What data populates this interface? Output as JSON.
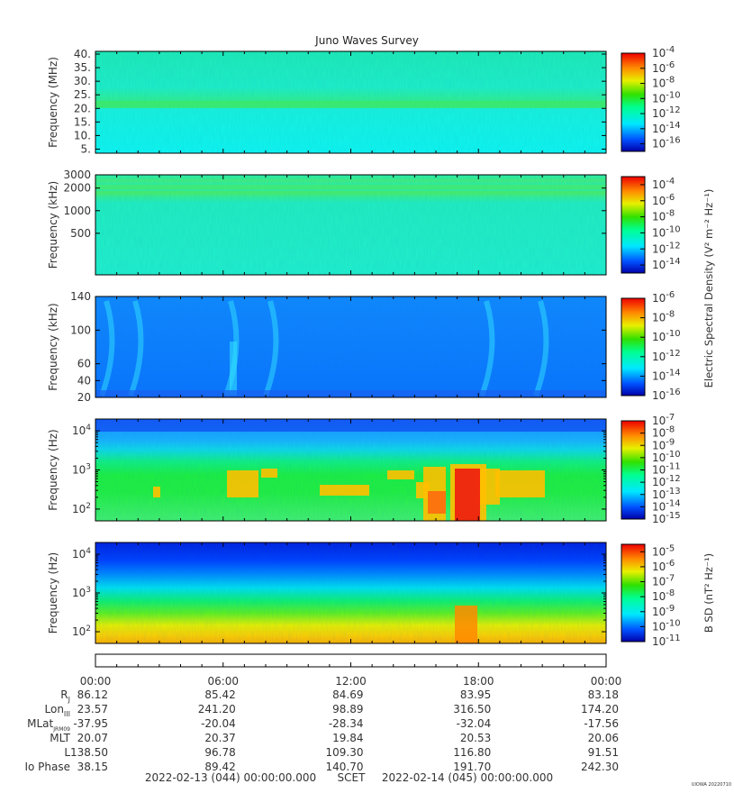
{
  "chart_data": {
    "type": "heatmap",
    "title": "Juno Waves Survey",
    "x_axis": {
      "tick_labels": [
        "00:00",
        "06:00",
        "12:00",
        "18:00",
        "00:00"
      ],
      "start": "2022-02-13 (044) 00:00:00.000",
      "end": "2022-02-14 (045) 00:00:00.000",
      "label": "SCET"
    },
    "ephemeris": [
      {
        "name": "R",
        "sub": "J",
        "values": [
          "86.12",
          "85.42",
          "84.69",
          "83.95",
          "83.18"
        ]
      },
      {
        "name": "Lon",
        "sub": "III",
        "values": [
          "23.57",
          "241.20",
          "98.89",
          "316.50",
          "174.20"
        ]
      },
      {
        "name": "MLat",
        "sub": "JRM09",
        "values": [
          "-37.95",
          "-20.04",
          "-28.34",
          "-32.04",
          "-17.56"
        ]
      },
      {
        "name": "MLT",
        "sub": "",
        "values": [
          "20.07",
          "20.37",
          "19.84",
          "20.53",
          "20.06"
        ]
      },
      {
        "name": "L",
        "sub": "",
        "values": [
          "138.50",
          "96.78",
          "109.30",
          "116.80",
          "91.51"
        ]
      },
      {
        "name": "Io Phase",
        "sub": "",
        "values": [
          "38.15",
          "89.42",
          "140.70",
          "191.70",
          "242.30"
        ]
      }
    ],
    "panels": [
      {
        "ylabel": "Frequency (MHz)",
        "scale": "linear",
        "ylim": [
          3.5,
          41
        ],
        "yticks": [
          "40.",
          "35.",
          "30.",
          "25.",
          "20.",
          "15.",
          "10.",
          "5."
        ],
        "colorbar_exponents": [
          "-4",
          "-6",
          "-8",
          "-10",
          "-12",
          "-14",
          "-16"
        ],
        "colorbar_range": [
          -17,
          -4
        ]
      },
      {
        "ylabel": "Frequency (kHz)",
        "scale": "log",
        "ylim": [
          140,
          3000
        ],
        "yticks": [
          "3000",
          "2000",
          "1000",
          "500"
        ],
        "colorbar_exponents": [
          "-4",
          "-6",
          "-8",
          "-10",
          "-12",
          "-14"
        ],
        "colorbar_range": [
          -15,
          -3
        ]
      },
      {
        "ylabel": "Frequency (kHz)",
        "scale": "linear",
        "ylim": [
          20,
          140
        ],
        "yticks": [
          "140",
          "100",
          "60",
          "40",
          "20"
        ],
        "colorbar_exponents": [
          "-6",
          "-8",
          "-10",
          "-12",
          "-14",
          "-16"
        ],
        "colorbar_range": [
          -16,
          -6
        ]
      },
      {
        "ylabel": "Frequency (Hz)",
        "scale": "log",
        "ylim": [
          50,
          20000
        ],
        "yticks_exp": [
          "4",
          "3",
          "2"
        ],
        "colorbar_exponents": [
          "-7",
          "-8",
          "-9",
          "-10",
          "-11",
          "-12",
          "-13",
          "-14",
          "-15"
        ],
        "colorbar_range": [
          -15,
          -7
        ]
      },
      {
        "ylabel": "Frequency (Hz)",
        "scale": "log",
        "ylim": [
          50,
          20000
        ],
        "yticks_exp": [
          "4",
          "3",
          "2"
        ],
        "colorbar_exponents": [
          "-5",
          "-6",
          "-7",
          "-8",
          "-9",
          "-10",
          "-11"
        ],
        "colorbar_range": [
          -11,
          -4.5
        ]
      }
    ],
    "colorbar_labels": {
      "electric": "Electric Spectral Density (V² m⁻² Hz⁻¹)",
      "magnetic": "B SD (nT² Hz⁻¹)"
    },
    "credit": "UIOWA 20220710"
  }
}
